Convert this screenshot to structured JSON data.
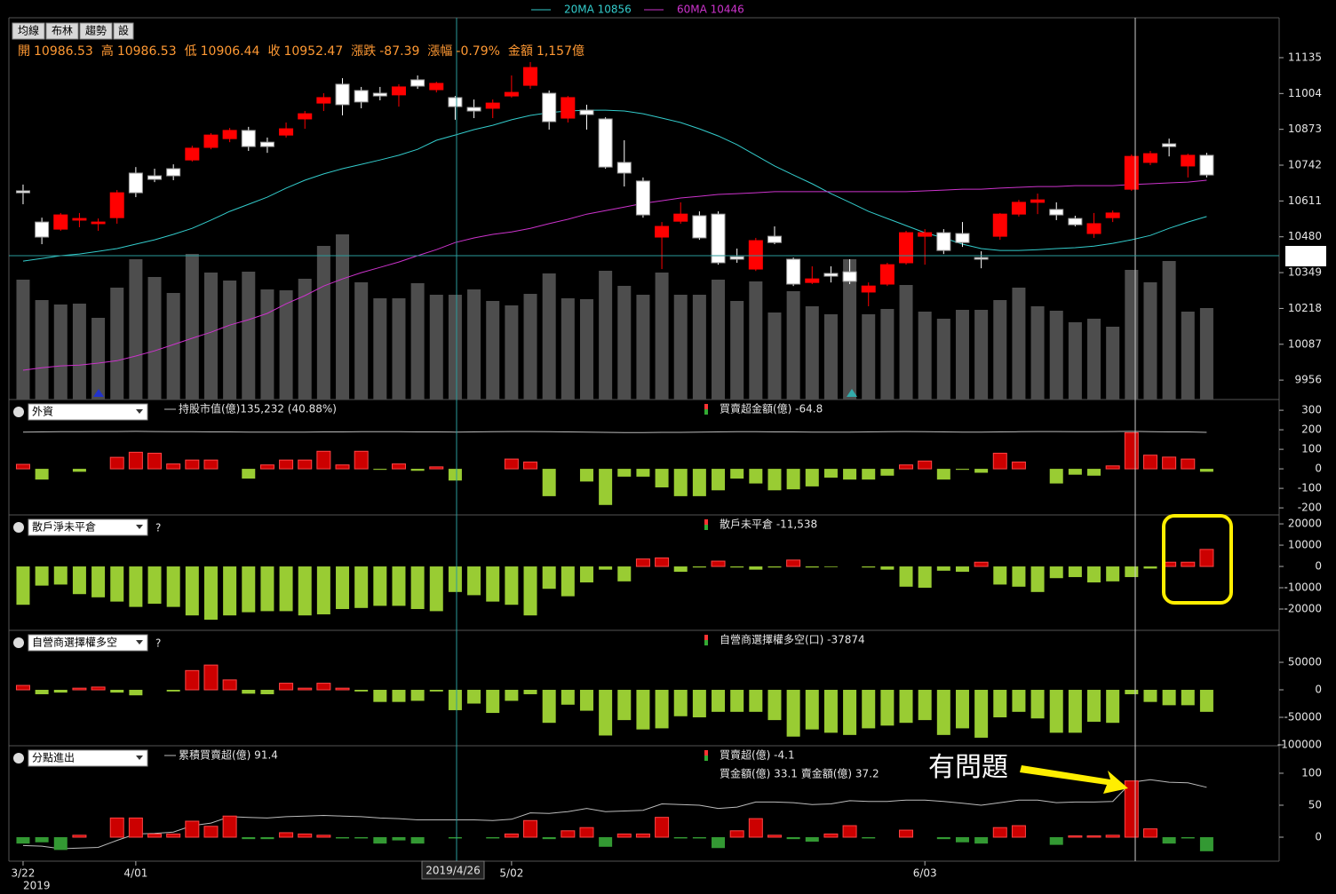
{
  "toolbar": [
    "均線",
    "布林",
    "趨勢",
    "設"
  ],
  "quote": [
    {
      "label": "開",
      "value": "10986.53"
    },
    {
      "label": "高",
      "value": "10986.53"
    },
    {
      "label": "低",
      "value": "10906.44"
    },
    {
      "label": "收",
      "value": "10952.47"
    },
    {
      "label": "漲跌",
      "value": "-87.39"
    },
    {
      "label": "漲幅",
      "value": "-0.79%"
    },
    {
      "label": "金額",
      "value": "1,157億"
    }
  ],
  "axis_year": "2019",
  "cursor_date": "2019/4/26",
  "annotation": "有問題",
  "chart_data": [
    {
      "type": "candlestick",
      "categories": [
        "3/22",
        null,
        null,
        null,
        null,
        null,
        "4/01",
        null,
        null,
        null,
        null,
        null,
        null,
        null,
        null,
        null,
        null,
        null,
        null,
        null,
        null,
        null,
        null,
        null,
        null,
        null,
        "5/02",
        null,
        null,
        null,
        null,
        null,
        null,
        null,
        null,
        null,
        null,
        null,
        null,
        null,
        null,
        null,
        null,
        null,
        null,
        null,
        null,
        null,
        "6/03",
        null,
        null,
        null,
        null,
        null,
        null,
        null,
        null,
        null,
        null,
        null,
        null,
        null,
        null,
        null
      ],
      "open": [
        10648,
        10534,
        10508,
        10541,
        10528,
        10550,
        10713,
        10703,
        10729,
        10761,
        10807,
        10839,
        10869,
        10826,
        10852,
        10911,
        10969,
        11038,
        11015,
        11005,
        10999,
        11054,
        11018,
        10989,
        10953,
        10950,
        10995,
        11034,
        11005,
        10914,
        10943,
        10911,
        10752,
        10684,
        10479,
        10537,
        10557,
        10563,
        10407,
        10362,
        10482,
        10398,
        10313,
        10346,
        10352,
        10278,
        10307,
        10385,
        10482,
        10495,
        10492,
        10404,
        10482,
        10563,
        10606,
        10580,
        10547,
        10492,
        10550,
        10654,
        10752,
        10820,
        10739,
        10778
      ],
      "high": [
        10671,
        10550,
        10567,
        10567,
        10547,
        10651,
        10735,
        10729,
        10745,
        10813,
        10859,
        10878,
        10882,
        10843,
        10898,
        10940,
        11005,
        11060,
        11028,
        11028,
        11038,
        11070,
        11047,
        10995,
        10982,
        10982,
        11070,
        11119,
        11015,
        10995,
        10963,
        10917,
        10833,
        10697,
        10534,
        10606,
        10573,
        10573,
        10437,
        10476,
        10518,
        10404,
        10372,
        10372,
        10398,
        10313,
        10385,
        10502,
        10508,
        10508,
        10534,
        10427,
        10567,
        10615,
        10638,
        10606,
        10557,
        10567,
        10576,
        10781,
        10794,
        10839,
        10784,
        10787
      ],
      "low": [
        10599,
        10453,
        10502,
        10515,
        10502,
        10528,
        10625,
        10680,
        10687,
        10755,
        10800,
        10826,
        10794,
        10787,
        10843,
        10875,
        10940,
        10924,
        10950,
        10979,
        10956,
        11021,
        11008,
        10908,
        10914,
        10914,
        10989,
        11021,
        10872,
        10898,
        10872,
        10729,
        10664,
        10550,
        10362,
        10528,
        10469,
        10378,
        10385,
        10355,
        10453,
        10300,
        10307,
        10313,
        10307,
        10226,
        10300,
        10378,
        10378,
        10417,
        10443,
        10365,
        10469,
        10554,
        10563,
        10541,
        10518,
        10476,
        10534,
        10648,
        10742,
        10774,
        10697,
        10697
      ],
      "close": [
        10641,
        10479,
        10560,
        10547,
        10534,
        10641,
        10641,
        10690,
        10703,
        10804,
        10852,
        10869,
        10810,
        10810,
        10875,
        10930,
        10989,
        10963,
        10973,
        10995,
        11028,
        11031,
        11041,
        10956,
        10940,
        10969,
        11008,
        11099,
        10901,
        10989,
        10927,
        10735,
        10713,
        10560,
        10518,
        10563,
        10476,
        10385,
        10398,
        10466,
        10459,
        10307,
        10326,
        10336,
        10317,
        10300,
        10378,
        10495,
        10495,
        10430,
        10459,
        10398,
        10563,
        10606,
        10615,
        10560,
        10524,
        10528,
        10567,
        10774,
        10784,
        10810,
        10778,
        10706
      ],
      "up_color": "#ff0000",
      "down_color": "#ffffff",
      "series": [
        {
          "name": "20MA 10856",
          "color": "#33cccc",
          "values": [
            10391,
            10401,
            10411,
            10417,
            10427,
            10437,
            10453,
            10469,
            10489,
            10511,
            10541,
            10573,
            10599,
            10625,
            10658,
            10687,
            10710,
            10729,
            10745,
            10761,
            10778,
            10800,
            10833,
            10852,
            10872,
            10888,
            10908,
            10924,
            10934,
            10940,
            10943,
            10943,
            10940,
            10930,
            10914,
            10898,
            10875,
            10849,
            10817,
            10778,
            10739,
            10706,
            10674,
            10638,
            10606,
            10573,
            10547,
            10521,
            10495,
            10476,
            10453,
            10437,
            10430,
            10430,
            10433,
            10437,
            10440,
            10446,
            10456,
            10469,
            10485,
            10511,
            10534,
            10554
          ]
        },
        {
          "name": "60MA 10446",
          "color": "#cc33cc",
          "values": [
            9992,
            10001,
            10008,
            10011,
            10018,
            10027,
            10044,
            10063,
            10086,
            10109,
            10131,
            10157,
            10177,
            10200,
            10235,
            10265,
            10300,
            10326,
            10349,
            10368,
            10388,
            10411,
            10433,
            10459,
            10476,
            10489,
            10498,
            10511,
            10528,
            10544,
            10563,
            10576,
            10589,
            10602,
            10612,
            10622,
            10628,
            10635,
            10638,
            10641,
            10645,
            10645,
            10645,
            10645,
            10645,
            10645,
            10645,
            10645,
            10648,
            10651,
            10654,
            10654,
            10658,
            10661,
            10664,
            10664,
            10667,
            10667,
            10667,
            10671,
            10674,
            10677,
            10680,
            10687
          ]
        }
      ],
      "volume": {
        "color": "#4d4d4d",
        "ylim": [
          0,
          430
        ],
        "values": [
          135,
          112,
          107,
          108,
          92,
          126,
          158,
          138,
          120,
          164,
          143,
          134,
          144,
          124,
          123,
          136,
          173,
          186,
          132,
          114,
          114,
          131,
          118,
          118,
          124,
          111,
          106,
          119,
          142,
          114,
          113,
          145,
          128,
          118,
          143,
          118,
          118,
          135,
          111,
          133,
          98,
          122,
          105,
          96,
          158,
          96,
          102,
          129,
          99,
          91,
          101,
          101,
          112,
          126,
          105,
          100,
          87,
          91,
          82,
          146,
          132,
          156,
          99,
          103
        ]
      },
      "ylim": [
        9885,
        11281
      ],
      "yticks": [
        11135,
        11004,
        10873,
        10742,
        10611,
        10480,
        10349,
        10218,
        10087,
        9956
      ]
    },
    {
      "type": "bar",
      "title": "外資",
      "series": [
        {
          "name": "持股市值(億)135,232 (40.88%)",
          "type": "line",
          "color": "#bbbbbb",
          "values": [
            188,
            189,
            190,
            190,
            191,
            191,
            192,
            191,
            190,
            190,
            189,
            189,
            188,
            188,
            188,
            188,
            189,
            189,
            190,
            190,
            190,
            189,
            189,
            188,
            189,
            190,
            191,
            191,
            190,
            189,
            188,
            187,
            186,
            186,
            187,
            187,
            188,
            189,
            190,
            190,
            189,
            189,
            188,
            188,
            188,
            189,
            190,
            191,
            190,
            189,
            188,
            188,
            189,
            190,
            191,
            191,
            190,
            190,
            191,
            192,
            190,
            189,
            189,
            187
          ]
        },
        {
          "name": "買賣超金額(億) -64.8",
          "type": "bar",
          "up_color": "#cc0000",
          "down_color": "#99cc33",
          "values": [
            23,
            -55,
            0,
            -15,
            0,
            59,
            85,
            80,
            25,
            45,
            45,
            0,
            -50,
            20,
            45,
            45,
            90,
            20,
            90,
            -5,
            25,
            -10,
            10,
            -60,
            0,
            0,
            50,
            35,
            -140,
            0,
            -65,
            -185,
            -40,
            -40,
            -95,
            -140,
            -140,
            -110,
            -50,
            -75,
            -110,
            -105,
            -90,
            -45,
            -55,
            -55,
            -35,
            20,
            40,
            -55,
            -5,
            -20,
            80,
            35,
            0,
            -75,
            -30,
            -35,
            15,
            185,
            70,
            60,
            50,
            -15
          ]
        }
      ],
      "ylim": [
        -236,
        355
      ],
      "yticks": [
        300,
        200,
        100,
        0,
        -100,
        -200
      ]
    },
    {
      "type": "bar",
      "title": "散戶淨未平倉",
      "help": "?",
      "series": [
        {
          "name": "散戶未平倉 -11,538",
          "type": "bar",
          "up_color": "#cc0000",
          "down_color": "#99cc33",
          "values": [
            -18000,
            -9000,
            -8500,
            -13000,
            -14500,
            -16500,
            -19000,
            -17500,
            -19000,
            -23000,
            -25000,
            -23000,
            -21500,
            -21000,
            -21000,
            -23000,
            -22500,
            -20000,
            -19500,
            -18500,
            -18500,
            -20000,
            -21000,
            -12000,
            -13500,
            -16500,
            -18000,
            -23000,
            -10500,
            -14000,
            -7500,
            -1500,
            -7000,
            3500,
            4000,
            -2500,
            -500,
            2500,
            -500,
            -1500,
            -500,
            3000,
            -500,
            -300,
            0,
            -500,
            -1500,
            -9500,
            -10000,
            -2000,
            -2500,
            2000,
            -8500,
            -9500,
            -12000,
            -5500,
            -5000,
            -7500,
            -7000,
            -5000,
            -1000,
            2000,
            2000,
            8000
          ]
        }
      ],
      "ylim": [
        -30000,
        24200
      ],
      "yticks": [
        20000,
        10000,
        0,
        -10000,
        -20000
      ]
    },
    {
      "type": "bar",
      "title": "自營商選擇權多空",
      "help": "?",
      "series": [
        {
          "name": "自營商選擇權多空(口) -37874",
          "type": "bar",
          "up_color": "#cc0000",
          "down_color": "#99cc33",
          "values": [
            8000,
            -8000,
            -5000,
            3000,
            5000,
            -5000,
            -10000,
            0,
            -3000,
            35000,
            45000,
            18000,
            -7000,
            -8000,
            12000,
            3000,
            12000,
            3000,
            -3000,
            -22000,
            -22000,
            -20000,
            -3000,
            -37000,
            -25000,
            -42000,
            -20000,
            -8000,
            -60000,
            -27000,
            -38000,
            -83000,
            -55000,
            -72000,
            -70000,
            -48000,
            -50000,
            -40000,
            -40000,
            -40000,
            -55000,
            -85000,
            -72000,
            -78000,
            -82000,
            -70000,
            -65000,
            -60000,
            -55000,
            -82000,
            -70000,
            -87000,
            -50000,
            -40000,
            -52000,
            -78000,
            -78000,
            -58000,
            -60000,
            -8000,
            -22000,
            -28000,
            -28000,
            -40000
          ]
        }
      ],
      "ylim": [
        -101600,
        108100
      ],
      "yticks": [
        50000,
        0,
        -50000,
        -100000
      ]
    },
    {
      "type": "bar",
      "title": "分點進出",
      "note": "買金額(億) 33.1 賣金額(億) 37.2",
      "series": [
        {
          "name": "累積買賣超(億) 91.4",
          "type": "line",
          "color": "#bbbbbb",
          "values": [
            -13,
            -14,
            -18,
            -17,
            -16,
            -5,
            5,
            6,
            8,
            18,
            22,
            32,
            31,
            30,
            32,
            33,
            34,
            33,
            32,
            30,
            29,
            27,
            27,
            27,
            27,
            26,
            28,
            38,
            37,
            40,
            45,
            40,
            41,
            42,
            52,
            51,
            50,
            45,
            47,
            55,
            55,
            54,
            51,
            52,
            57,
            56,
            56,
            58,
            58,
            56,
            53,
            50,
            54,
            58,
            58,
            54,
            55,
            55,
            56,
            86,
            90,
            86,
            85,
            78
          ]
        },
        {
          "name": "買賣超(億) -4.1",
          "type": "bar",
          "up_color": "#cc0000",
          "down_color": "#339933",
          "values": [
            -10,
            -8,
            -20,
            3,
            0,
            30,
            30,
            5,
            5,
            25,
            17,
            33,
            -3,
            -3,
            7,
            5,
            3,
            -2,
            -2,
            -10,
            -5,
            -10,
            0,
            -2,
            0,
            -2,
            5,
            26,
            -3,
            10,
            15,
            -15,
            5,
            5,
            31,
            -2,
            -2,
            -17,
            10,
            29,
            3,
            -3,
            -7,
            5,
            18,
            -2,
            0,
            11,
            0,
            -3,
            -8,
            -10,
            15,
            18,
            0,
            -12,
            2,
            2,
            3,
            88,
            13,
            -10,
            -2,
            -22
          ]
        }
      ],
      "ylim": [
        -37.5,
        143
      ],
      "yticks": [
        100,
        50,
        0
      ]
    }
  ]
}
